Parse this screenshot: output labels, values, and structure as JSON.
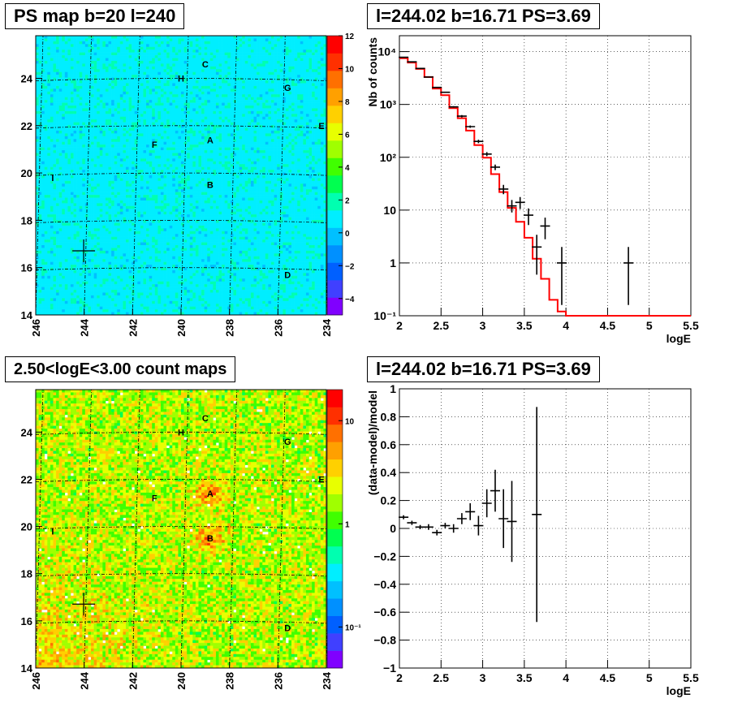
{
  "titles": {
    "ps_map": "PS map b=20 l=240",
    "spectrum": "l=244.02 b=16.71 PS=3.69",
    "count_map": "2.50<logE<3.00 count maps",
    "residual": "l=244.02 b=16.71 PS=3.69"
  },
  "chart_data": [
    {
      "id": "ps_map",
      "type": "heatmap",
      "title": "PS map b=20 l=240",
      "x_ticks": [
        "246",
        "244",
        "242",
        "240",
        "238",
        "236",
        "234"
      ],
      "y_ticks": [
        "14",
        "16",
        "18",
        "20",
        "22",
        "24"
      ],
      "xlim": [
        246,
        234
      ],
      "ylim": [
        14,
        25.8
      ],
      "colorbar_ticks": [
        "12",
        "10",
        "8",
        "6",
        "4",
        "2",
        "0",
        "−2",
        "−4"
      ],
      "colorbar_range": [
        -5,
        12
      ],
      "marker": {
        "l": 244.02,
        "b": 16.71
      },
      "sources": [
        {
          "label": "C",
          "l": 239.0,
          "b": 24.6
        },
        {
          "label": "H",
          "l": 240.0,
          "b": 24.0
        },
        {
          "label": "G",
          "l": 235.6,
          "b": 23.6
        },
        {
          "label": "E",
          "l": 234.2,
          "b": 22.0
        },
        {
          "label": "F",
          "l": 241.1,
          "b": 21.2
        },
        {
          "label": "A",
          "l": 238.8,
          "b": 21.4
        },
        {
          "label": "I",
          "l": 245.3,
          "b": 19.8
        },
        {
          "label": "B",
          "l": 238.8,
          "b": 19.5
        },
        {
          "label": "D",
          "l": 235.6,
          "b": 15.7
        }
      ]
    },
    {
      "id": "spectrum",
      "type": "line",
      "title": "l=244.02 b=16.71 PS=3.69",
      "xlabel": "logE",
      "ylabel": "Nb of counts",
      "x_ticks": [
        "2",
        "2.5",
        "3",
        "3.5",
        "4",
        "4.5",
        "5",
        "5.5"
      ],
      "y_ticks": [
        "10⁻¹",
        "1",
        "10",
        "10²",
        "10³",
        "10⁴"
      ],
      "y_tick_values": [
        0.1,
        1,
        10,
        100,
        1000,
        10000
      ],
      "xlim": [
        2,
        5.5
      ],
      "ylim": [
        0.1,
        20000
      ],
      "log_y": true,
      "bins_edges": [
        2.0,
        2.1,
        2.2,
        2.3,
        2.4,
        2.5,
        2.6,
        2.7,
        2.8,
        2.9,
        3.0,
        3.1,
        3.2,
        3.3,
        3.4,
        3.5,
        3.6,
        3.7,
        3.8,
        3.9,
        4.0,
        5.5
      ],
      "model": [
        7500,
        6200,
        4700,
        3300,
        2000,
        1500,
        850,
        550,
        320,
        170,
        98,
        48,
        22,
        11,
        6,
        3,
        1.2,
        0.5,
        0.2,
        0.12,
        0.1
      ],
      "data": [
        {
          "x": 2.05,
          "y": 7800
        },
        {
          "x": 2.15,
          "y": 6400
        },
        {
          "x": 2.25,
          "y": 4800
        },
        {
          "x": 2.35,
          "y": 3300
        },
        {
          "x": 2.45,
          "y": 2100
        },
        {
          "x": 2.55,
          "y": 1700
        },
        {
          "x": 2.65,
          "y": 900
        },
        {
          "x": 2.75,
          "y": 600
        },
        {
          "x": 2.85,
          "y": 380
        },
        {
          "x": 2.95,
          "y": 200
        },
        {
          "x": 3.05,
          "y": 115
        },
        {
          "x": 3.15,
          "y": 65
        },
        {
          "x": 3.25,
          "y": 25
        },
        {
          "x": 3.35,
          "y": 12
        },
        {
          "x": 3.45,
          "y": 14
        },
        {
          "x": 3.55,
          "y": 8
        },
        {
          "x": 3.65,
          "y": 2
        },
        {
          "x": 3.75,
          "y": 5
        },
        {
          "x": 3.95,
          "y": 1
        },
        {
          "x": 4.75,
          "y": 1
        }
      ],
      "data_err": [
        [
          7600,
          8000
        ],
        [
          6300,
          6500
        ],
        [
          4700,
          4900
        ],
        [
          3250,
          3400
        ],
        [
          2050,
          2150
        ],
        [
          1650,
          1750
        ],
        [
          870,
          930
        ],
        [
          570,
          630
        ],
        [
          360,
          400
        ],
        [
          185,
          215
        ],
        [
          105,
          125
        ],
        [
          57,
          73
        ],
        [
          20,
          30
        ],
        [
          9,
          15.5
        ],
        [
          10.5,
          17.7
        ],
        [
          5.2,
          10.8
        ],
        [
          0.6,
          3.4
        ],
        [
          2.8,
          7.2
        ],
        [
          0.16,
          2.0
        ],
        [
          0.16,
          2.0
        ]
      ]
    },
    {
      "id": "count_map",
      "type": "heatmap",
      "title": "2.50<logE<3.00 count maps",
      "x_ticks": [
        "246",
        "244",
        "242",
        "240",
        "238",
        "236",
        "234"
      ],
      "y_ticks": [
        "14",
        "16",
        "18",
        "20",
        "22",
        "24"
      ],
      "xlim": [
        246,
        234
      ],
      "ylim": [
        14,
        25.8
      ],
      "colorbar_ticks": [
        "10",
        "1",
        "10⁻¹"
      ],
      "colorbar_tick_values": [
        10,
        1,
        0.1
      ],
      "colorbar_range": [
        0.04,
        20
      ],
      "log_color": true,
      "marker": {
        "l": 244.02,
        "b": 16.71
      },
      "sources": [
        {
          "label": "C",
          "l": 239.0,
          "b": 24.6
        },
        {
          "label": "H",
          "l": 240.0,
          "b": 24.0
        },
        {
          "label": "G",
          "l": 235.6,
          "b": 23.6
        },
        {
          "label": "E",
          "l": 234.2,
          "b": 22.0
        },
        {
          "label": "F",
          "l": 241.1,
          "b": 21.2
        },
        {
          "label": "A",
          "l": 238.8,
          "b": 21.4
        },
        {
          "label": "I",
          "l": 245.3,
          "b": 19.8
        },
        {
          "label": "B",
          "l": 238.8,
          "b": 19.5
        },
        {
          "label": "D",
          "l": 235.6,
          "b": 15.7
        }
      ]
    },
    {
      "id": "residual",
      "type": "scatter",
      "title": "l=244.02 b=16.71 PS=3.69",
      "xlabel": "logE",
      "ylabel": "(data-model)/model",
      "x_ticks": [
        "2",
        "2.5",
        "3",
        "3.5",
        "4",
        "4.5",
        "5",
        "5.5"
      ],
      "y_ticks": [
        "−1",
        "−0.8",
        "−0.6",
        "−0.4",
        "−0.2",
        "0",
        "0.2",
        "0.4",
        "0.6",
        "0.8",
        "1"
      ],
      "y_tick_values": [
        -1,
        -0.8,
        -0.6,
        -0.4,
        -0.2,
        0,
        0.2,
        0.4,
        0.6,
        0.8,
        1
      ],
      "xlim": [
        2,
        5.5
      ],
      "ylim": [
        -1,
        1
      ],
      "points": [
        {
          "x": 2.05,
          "y": 0.08,
          "err": 0.015
        },
        {
          "x": 2.15,
          "y": 0.04,
          "err": 0.015
        },
        {
          "x": 2.25,
          "y": 0.01,
          "err": 0.015
        },
        {
          "x": 2.35,
          "y": 0.01,
          "err": 0.02
        },
        {
          "x": 2.45,
          "y": -0.03,
          "err": 0.02
        },
        {
          "x": 2.55,
          "y": 0.02,
          "err": 0.02
        },
        {
          "x": 2.65,
          "y": 0.0,
          "err": 0.03
        },
        {
          "x": 2.75,
          "y": 0.07,
          "err": 0.04
        },
        {
          "x": 2.85,
          "y": 0.12,
          "err": 0.06
        },
        {
          "x": 2.95,
          "y": 0.02,
          "err": 0.07
        },
        {
          "x": 3.05,
          "y": 0.18,
          "err": 0.1
        },
        {
          "x": 3.15,
          "y": 0.27,
          "err": 0.15
        },
        {
          "x": 3.25,
          "y": 0.07,
          "err": 0.21
        },
        {
          "x": 3.35,
          "y": 0.05,
          "err": 0.29
        },
        {
          "x": 3.65,
          "y": 0.1,
          "err": 0.77
        }
      ]
    }
  ]
}
